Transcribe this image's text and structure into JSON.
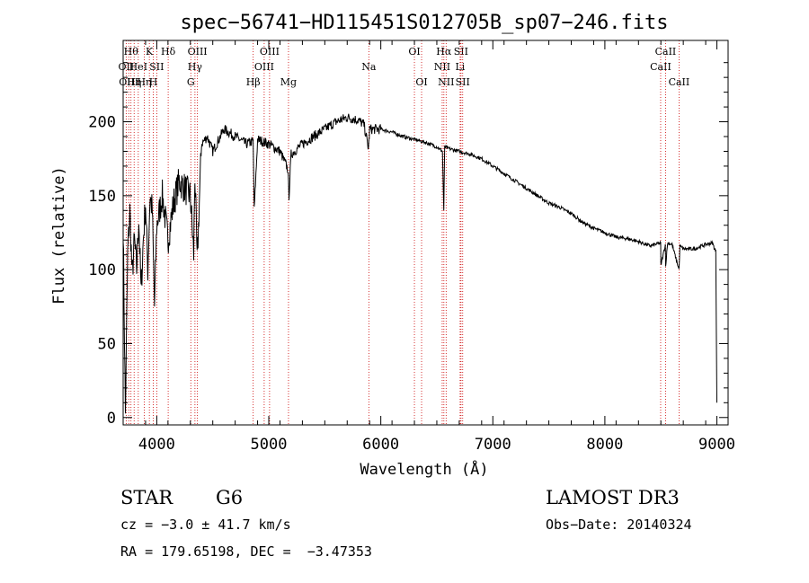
{
  "chart_data": {
    "type": "line",
    "title": "spec−56741−HD115451S012705B_sp07−246.fits",
    "xlabel": "Wavelength (Å)",
    "ylabel": "Flux (relative)",
    "xlim": [
      3700,
      9100
    ],
    "ylim": [
      -5,
      255
    ],
    "xticks": [
      4000,
      5000,
      6000,
      7000,
      8000,
      9000
    ],
    "yticks": [
      0,
      50,
      100,
      150,
      200
    ],
    "series": [
      {
        "name": "spectrum",
        "x": [
          3700,
          3720,
          3740,
          3760,
          3780,
          3800,
          3820,
          3840,
          3860,
          3880,
          3900,
          3920,
          3940,
          3960,
          3980,
          4000,
          4050,
          4100,
          4150,
          4200,
          4250,
          4300,
          4330,
          4340,
          4360,
          4400,
          4450,
          4500,
          4600,
          4700,
          4800,
          4860,
          4870,
          4900,
          5000,
          5100,
          5170,
          5180,
          5200,
          5300,
          5400,
          5500,
          5600,
          5700,
          5800,
          5850,
          5890,
          5900,
          6000,
          6100,
          6200,
          6300,
          6400,
          6500,
          6550,
          6562,
          6570,
          6600,
          6700,
          6800,
          6900,
          7000,
          7100,
          7200,
          7300,
          7400,
          7500,
          7600,
          7700,
          7800,
          7900,
          8000,
          8100,
          8200,
          8300,
          8400,
          8498,
          8500,
          8540,
          8542,
          8560,
          8600,
          8662,
          8670,
          8700,
          8800,
          8900,
          8960,
          8990,
          9000
        ],
        "y": [
          130,
          2,
          110,
          140,
          95,
          120,
          100,
          135,
          85,
          120,
          145,
          100,
          150,
          140,
          75,
          130,
          150,
          120,
          145,
          160,
          155,
          150,
          110,
          165,
          105,
          185,
          190,
          180,
          195,
          190,
          185,
          187,
          140,
          188,
          185,
          180,
          168,
          150,
          178,
          185,
          190,
          195,
          200,
          203,
          201,
          198,
          182,
          195,
          195,
          193,
          190,
          188,
          186,
          183,
          180,
          140,
          183,
          182,
          180,
          178,
          175,
          170,
          165,
          160,
          155,
          150,
          145,
          142,
          138,
          132,
          128,
          125,
          122,
          121,
          119,
          116,
          118,
          103,
          117,
          102,
          118,
          117,
          100,
          116,
          114,
          114,
          117,
          118,
          112,
          10
        ]
      }
    ],
    "line_markers": [
      {
        "x": 3727,
        "label": "OII",
        "row": 1
      },
      {
        "x": 3750,
        "label": "OIII",
        "row": 2
      },
      {
        "x": 3770,
        "label": "Hθ",
        "row": 0
      },
      {
        "x": 3798,
        "label": "Hη",
        "row": 2
      },
      {
        "x": 3835,
        "label": "HeI",
        "row": 1
      },
      {
        "x": 3889,
        "label": "Hη",
        "row": 2
      },
      {
        "x": 3934,
        "label": "K",
        "row": 0
      },
      {
        "x": 3969,
        "label": "H",
        "row": 2
      },
      {
        "x": 4000,
        "label": "SII",
        "row": 1
      },
      {
        "x": 4102,
        "label": "Hδ",
        "row": 0
      },
      {
        "x": 4304,
        "label": "G",
        "row": 2
      },
      {
        "x": 4341,
        "label": "Hγ",
        "row": 1
      },
      {
        "x": 4363,
        "label": "OIII",
        "row": 0
      },
      {
        "x": 4861,
        "label": "Hβ",
        "row": 2
      },
      {
        "x": 4959,
        "label": "OIII",
        "row": 1
      },
      {
        "x": 5007,
        "label": "OIII",
        "row": 0
      },
      {
        "x": 5176,
        "label": "Mg",
        "row": 2
      },
      {
        "x": 5893,
        "label": "Na",
        "row": 1
      },
      {
        "x": 6300,
        "label": "OI",
        "row": 0
      },
      {
        "x": 6364,
        "label": "OI",
        "row": 2
      },
      {
        "x": 6548,
        "label": "NII",
        "row": 1
      },
      {
        "x": 6563,
        "label": "Hα",
        "row": 0
      },
      {
        "x": 6583,
        "label": "NII",
        "row": 2
      },
      {
        "x": 6708,
        "label": "Li",
        "row": 1
      },
      {
        "x": 6716,
        "label": "SII",
        "row": 0
      },
      {
        "x": 6731,
        "label": "SII",
        "row": 2
      },
      {
        "x": 8498,
        "label": "CaII",
        "row": 1
      },
      {
        "x": 8542,
        "label": "CaII",
        "row": 0
      },
      {
        "x": 8662,
        "label": "CaII",
        "row": 2
      }
    ]
  },
  "info": {
    "object_class": "STAR",
    "subclass": "G6",
    "survey": "LAMOST DR3",
    "redshift": "cz = −3.0 ± 41.7 km/s",
    "obs_date": "Obs−Date: 20140324",
    "coords": "RA = 179.65198, DEC =  −3.47353"
  }
}
